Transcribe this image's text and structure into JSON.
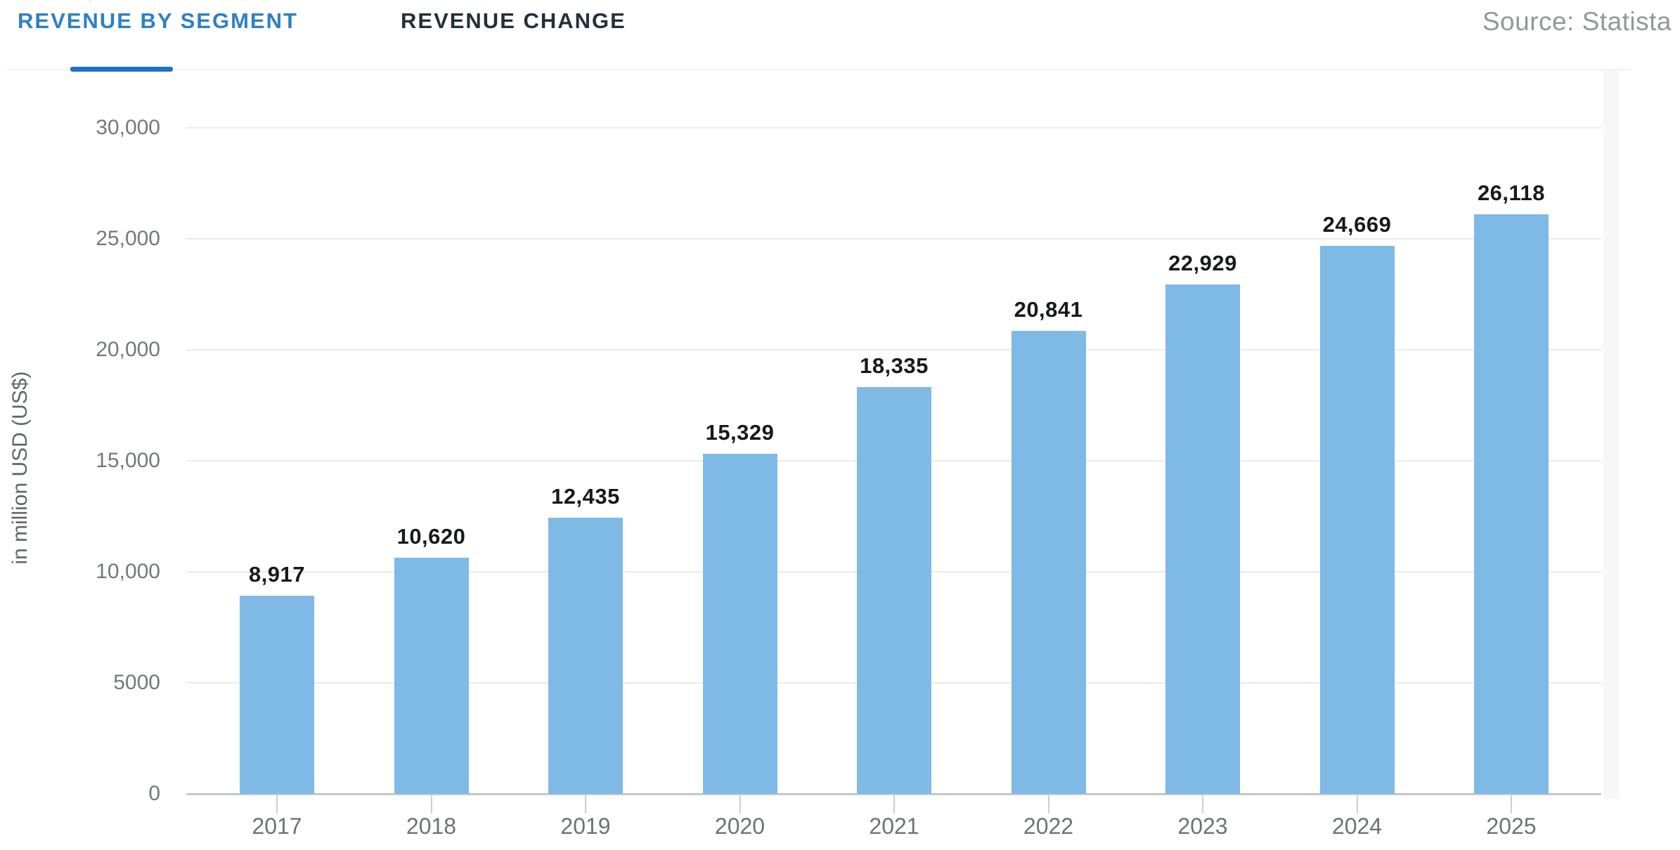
{
  "header": {
    "tabs": [
      {
        "label": "REVENUE BY SEGMENT",
        "active": true
      },
      {
        "label": "REVENUE CHANGE",
        "active": false
      }
    ],
    "source": "Source: Statista"
  },
  "colors": {
    "tab_active": "#2e80c6",
    "tab_inactive": "#22303c",
    "tab_indicator": "#1e72c4",
    "source_text": "#949799",
    "bar": "#7fb9e6",
    "gridline": "#e9eaeb",
    "axis_line": "#c3c7ca",
    "tick_label": "#74787c",
    "year_label": "#6d7277",
    "value_label": "#17191b"
  },
  "chart_data": {
    "type": "bar",
    "categories": [
      "2017",
      "2018",
      "2019",
      "2020",
      "2021",
      "2022",
      "2023",
      "2024",
      "2025"
    ],
    "values": [
      8917,
      10620,
      12435,
      15329,
      18335,
      20841,
      22929,
      24669,
      26118
    ],
    "value_labels": [
      "8,917",
      "10,620",
      "12,435",
      "15,329",
      "18,335",
      "20,841",
      "22,929",
      "24,669",
      "26,118"
    ],
    "title": "",
    "xlabel": "",
    "ylabel": "in million USD (US$)",
    "ylim": [
      0,
      30000
    ],
    "yticks": [
      {
        "value": 0,
        "label": "0"
      },
      {
        "value": 5000,
        "label": "5000"
      },
      {
        "value": 10000,
        "label": "10,000"
      },
      {
        "value": 15000,
        "label": "15,000"
      },
      {
        "value": 20000,
        "label": "20,000"
      },
      {
        "value": 25000,
        "label": "25,000"
      },
      {
        "value": 30000,
        "label": "30,000"
      }
    ],
    "grid": true,
    "legend": false,
    "bar_color": "#7fb9e6"
  }
}
